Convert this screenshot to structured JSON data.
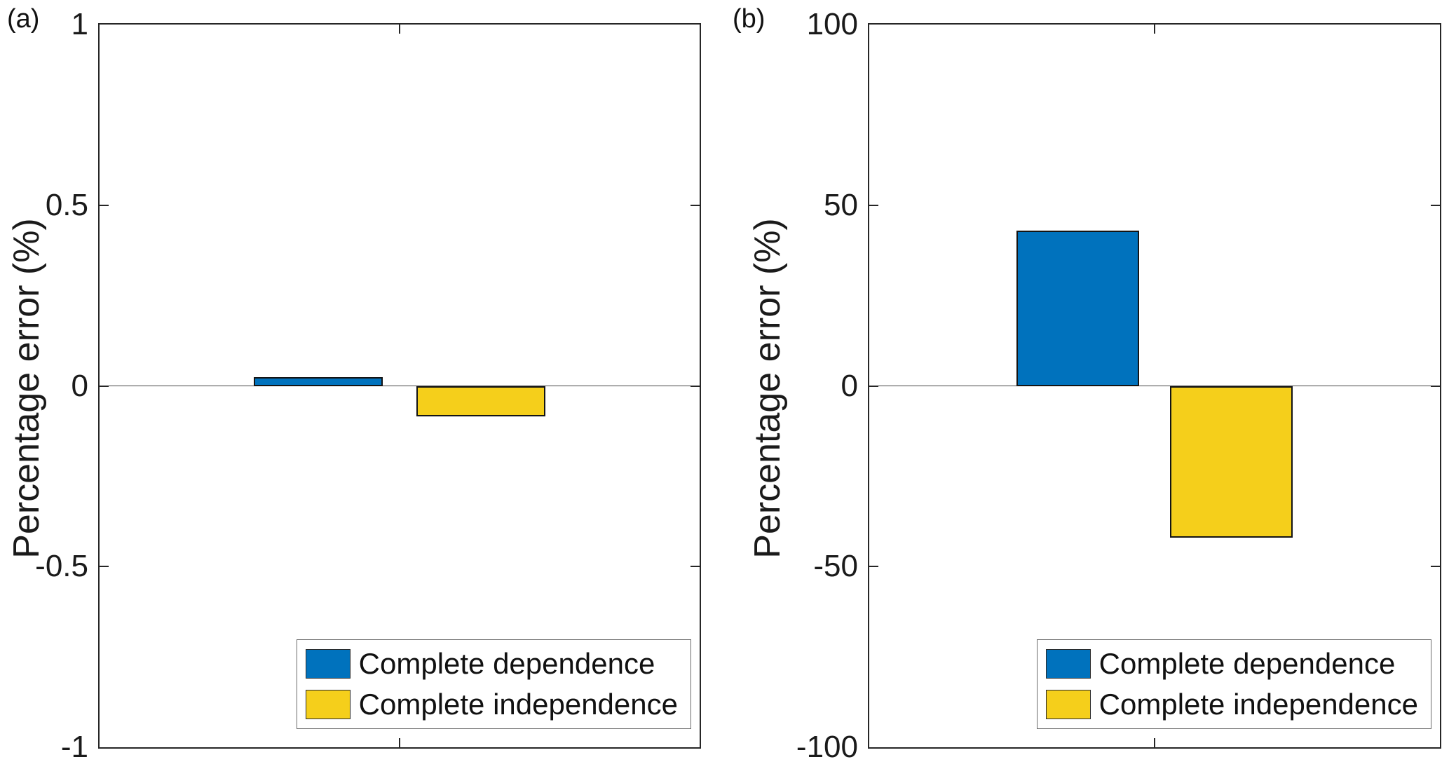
{
  "chart_data": [
    {
      "type": "bar",
      "panel": "(a)",
      "ylabel": "Percentage error (%)",
      "ylim": [
        -1,
        1
      ],
      "yticks": [
        1,
        0.5,
        0,
        -0.5,
        -1
      ],
      "yticklabels": [
        "1",
        "0.5",
        "0",
        "-0.5",
        "-1"
      ],
      "categories": [
        "Complete dependence",
        "Complete independence"
      ],
      "values": [
        0.025,
        -0.085
      ],
      "colors": [
        "#0072BD",
        "#F5CF1B"
      ],
      "legend": [
        "Complete dependence",
        "Complete independence"
      ],
      "legend_position": "inside-bottom-right",
      "grid": false,
      "box": true
    },
    {
      "type": "bar",
      "panel": "(b)",
      "ylabel": "Percentage error (%)",
      "ylim": [
        -100,
        100
      ],
      "yticks": [
        100,
        50,
        0,
        -50,
        -100
      ],
      "yticklabels": [
        "100",
        "50",
        "0",
        "-50",
        "-100"
      ],
      "categories": [
        "Complete dependence",
        "Complete independence"
      ],
      "values": [
        43,
        -42
      ],
      "colors": [
        "#0072BD",
        "#F5CF1B"
      ],
      "legend": [
        "Complete dependence",
        "Complete independence"
      ],
      "legend_position": "inside-bottom-right",
      "grid": false,
      "box": true
    }
  ]
}
